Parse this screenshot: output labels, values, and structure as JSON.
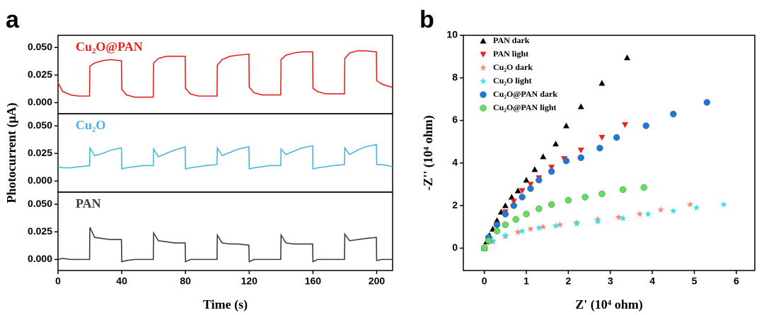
{
  "chart_data": [
    {
      "type": "line",
      "layout": "stacked",
      "panel_label": "a",
      "x_label": "Time (s)",
      "y_label": "Photocurrent (μA)",
      "xlim": [
        0,
        210
      ],
      "xticks": [
        0,
        40,
        80,
        120,
        160,
        200
      ],
      "ylim": [
        -0.01,
        0.061
      ],
      "yticks": [
        {
          "value": 0,
          "label": "0.000"
        },
        {
          "value": 0.025,
          "label": "0.025"
        },
        {
          "value": 0.05,
          "label": "0.050"
        }
      ],
      "x": [
        0,
        3,
        8,
        13,
        19.8,
        20,
        23,
        28,
        33,
        39.8,
        40,
        43,
        48,
        53,
        59.8,
        60,
        63,
        68,
        73,
        79.8,
        80,
        83,
        88,
        93,
        99.8,
        100,
        103,
        108,
        113,
        119.8,
        120,
        123,
        128,
        133,
        139.8,
        140,
        143,
        148,
        153,
        159.8,
        160,
        163,
        168,
        173,
        179.8,
        180,
        183,
        188,
        193,
        199.8,
        200,
        203,
        207,
        210
      ],
      "series": [
        {
          "name": "Cu₂O@PAN",
          "color": "#e8231e",
          "values": [
            0.018,
            0.01,
            0.007,
            0.006,
            0.006,
            0.033,
            0.036,
            0.038,
            0.039,
            0.038,
            0.012,
            0.007,
            0.005,
            0.005,
            0.005,
            0.036,
            0.04,
            0.042,
            0.042,
            0.042,
            0.013,
            0.008,
            0.006,
            0.006,
            0.006,
            0.034,
            0.039,
            0.042,
            0.043,
            0.044,
            0.014,
            0.009,
            0.007,
            0.007,
            0.007,
            0.039,
            0.043,
            0.045,
            0.046,
            0.046,
            0.013,
            0.01,
            0.008,
            0.008,
            0.008,
            0.04,
            0.045,
            0.047,
            0.047,
            0.046,
            0.02,
            0.017,
            0.015,
            0.014
          ]
        },
        {
          "name": "Cu₂O",
          "color": "#4ab4e6",
          "values": [
            0.013,
            0.012,
            0.012,
            0.013,
            0.014,
            0.03,
            0.023,
            0.025,
            0.028,
            0.03,
            0.011,
            0.012,
            0.013,
            0.014,
            0.014,
            0.029,
            0.022,
            0.025,
            0.028,
            0.031,
            0.011,
            0.012,
            0.013,
            0.014,
            0.015,
            0.03,
            0.023,
            0.026,
            0.029,
            0.031,
            0.011,
            0.012,
            0.013,
            0.014,
            0.014,
            0.029,
            0.024,
            0.027,
            0.03,
            0.032,
            0.011,
            0.012,
            0.013,
            0.014,
            0.015,
            0.03,
            0.024,
            0.028,
            0.031,
            0.033,
            0.015,
            0.015,
            0.014,
            0.013
          ]
        },
        {
          "name": "PAN",
          "color": "#3c3c3c",
          "values": [
            0.0,
            0.001,
            0.0,
            0.0,
            0.0,
            0.029,
            0.02,
            0.019,
            0.018,
            0.018,
            -0.002,
            -0.001,
            0.0,
            0.0,
            0.0,
            0.024,
            0.017,
            0.016,
            0.015,
            0.015,
            -0.002,
            0.0,
            0.0,
            0.0,
            0.0,
            0.022,
            0.015,
            0.014,
            0.014,
            0.013,
            -0.002,
            0.0,
            0.0,
            0.0,
            0.0,
            0.022,
            0.015,
            0.014,
            0.014,
            0.014,
            -0.002,
            0.0,
            0.0,
            0.0,
            0.0,
            0.023,
            0.017,
            0.018,
            0.019,
            0.02,
            -0.001,
            0.0,
            0.0,
            0.0
          ]
        }
      ]
    },
    {
      "type": "scatter",
      "panel_label": "b",
      "x_label": "Z' (10⁴ ohm)",
      "y_label": "-Z'' (10⁴ ohm)",
      "xlim": [
        -0.5,
        6.44
      ],
      "xticks": [
        0,
        1,
        2,
        3,
        4,
        5,
        6
      ],
      "ylim": [
        -1.05,
        10
      ],
      "yticks": [
        0,
        2,
        4,
        6,
        8,
        10
      ],
      "legend": "upper left",
      "series": [
        {
          "name": "PAN dark",
          "color": "#000000",
          "marker": "triangle-up",
          "x": [
            0,
            0.05,
            0.12,
            0.2,
            0.3,
            0.4,
            0.5,
            0.65,
            0.8,
            1.0,
            1.2,
            1.4,
            1.7,
            1.95,
            2.3,
            2.8,
            3.4
          ],
          "y": [
            0,
            0.3,
            0.6,
            0.9,
            1.3,
            1.7,
            2.0,
            2.4,
            2.7,
            3.2,
            3.7,
            4.3,
            4.9,
            5.75,
            6.65,
            7.75,
            8.95
          ]
        },
        {
          "name": "PAN light",
          "color": "#e8231e",
          "marker": "triangle-down",
          "x": [
            0,
            0.1,
            0.3,
            0.5,
            0.7,
            0.9,
            1.1,
            1.3,
            1.6,
            1.9,
            2.3,
            2.8,
            3.35
          ],
          "y": [
            0,
            0.4,
            1.1,
            1.7,
            2.2,
            2.7,
            3.0,
            3.3,
            3.8,
            4.2,
            4.6,
            5.2,
            5.8
          ]
        },
        {
          "name": "Cu₂O dark",
          "color": "#f08a7a",
          "marker": "star",
          "x": [
            0,
            0.2,
            0.5,
            0.8,
            1.1,
            1.4,
            1.8,
            2.2,
            2.7,
            3.2,
            3.7,
            4.2,
            4.9
          ],
          "y": [
            0,
            0.3,
            0.55,
            0.75,
            0.9,
            1.0,
            1.1,
            1.2,
            1.35,
            1.45,
            1.6,
            1.8,
            2.05
          ]
        },
        {
          "name": "Cu₂O light",
          "color": "#35e0e8",
          "marker": "star",
          "x": [
            0,
            0.2,
            0.5,
            0.9,
            1.3,
            1.7,
            2.2,
            2.7,
            3.3,
            3.9,
            4.5,
            5.05,
            5.7
          ],
          "y": [
            0,
            0.35,
            0.6,
            0.8,
            0.95,
            1.05,
            1.15,
            1.25,
            1.4,
            1.6,
            1.75,
            1.9,
            2.05
          ]
        },
        {
          "name": "Cu₂O@PAN dark",
          "color": "#1f78d4",
          "marker": "circle",
          "x": [
            0,
            0.1,
            0.3,
            0.5,
            0.7,
            0.9,
            1.1,
            1.3,
            1.6,
            1.95,
            2.3,
            2.75,
            3.15,
            3.85,
            4.5,
            5.3
          ],
          "y": [
            0,
            0.5,
            1.1,
            1.6,
            2.0,
            2.4,
            2.8,
            3.2,
            3.6,
            4.1,
            4.25,
            4.7,
            5.2,
            5.75,
            6.3,
            6.85
          ]
        },
        {
          "name": "Cu₂O@PAN light",
          "color": "#5ee05a",
          "marker": "circle",
          "x": [
            0,
            0.1,
            0.3,
            0.5,
            0.75,
            1.0,
            1.3,
            1.6,
            2.0,
            2.4,
            2.8,
            3.3,
            3.8
          ],
          "y": [
            0,
            0.35,
            0.8,
            1.1,
            1.35,
            1.6,
            1.85,
            2.05,
            2.25,
            2.4,
            2.55,
            2.75,
            2.85
          ]
        }
      ]
    }
  ]
}
